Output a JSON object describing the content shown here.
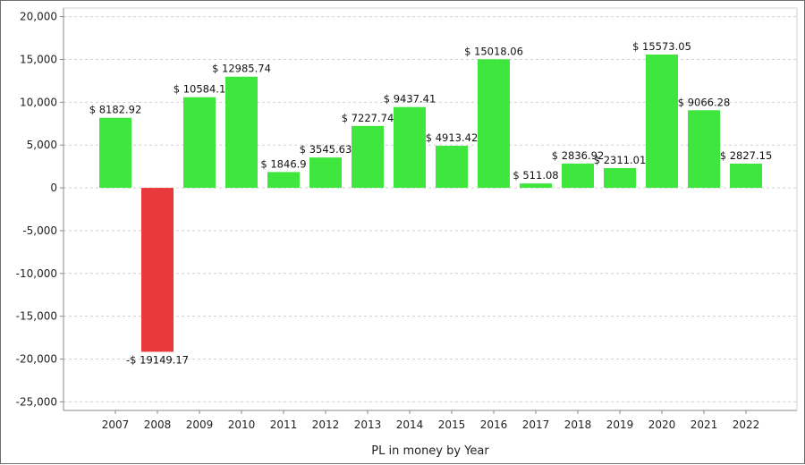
{
  "chart_data": {
    "type": "bar",
    "title": "",
    "xlabel": "PL in money by Year",
    "ylabel": "",
    "categories": [
      "2007",
      "2008",
      "2009",
      "2010",
      "2011",
      "2012",
      "2013",
      "2014",
      "2015",
      "2016",
      "2017",
      "2018",
      "2019",
      "2020",
      "2021",
      "2022"
    ],
    "values": [
      8182.92,
      -19149.17,
      10584.1,
      12985.74,
      1846.9,
      3545.63,
      7227.74,
      9437.41,
      4913.42,
      15018.06,
      511.08,
      2836.92,
      2311.01,
      15573.05,
      9066.28,
      2827.15
    ],
    "data_labels": [
      "$ 8182.92",
      "-$ 19149.17",
      "$ 10584.1",
      "$ 12985.74",
      "$ 1846.9",
      "$ 3545.63",
      "$ 7227.74",
      "$ 9437.41",
      "$ 4913.42",
      "$ 15018.06",
      "$ 511.08",
      "$ 2836.92",
      "$ 2311.01",
      "$ 15573.05",
      "$ 9066.28",
      "$ 2827.15"
    ],
    "ylim": [
      -26000,
      21000
    ],
    "yticks": [
      20000,
      15000,
      10000,
      5000,
      0,
      -5000,
      -10000,
      -15000,
      -20000,
      -25000
    ],
    "ytick_labels": [
      "20,000",
      "15,000",
      "10,000",
      "5,000",
      "0",
      "-5,000",
      "-10,000",
      "-15,000",
      "-20,000",
      "-25,000"
    ],
    "grid": true,
    "colors": {
      "positive": "#3ee63e",
      "negative": "#e8393b",
      "grid": "#d0d0d0",
      "axis": "#888888"
    }
  }
}
